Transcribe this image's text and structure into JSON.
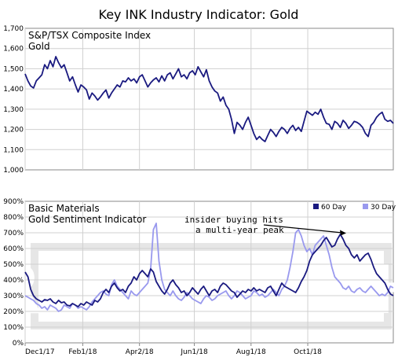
{
  "title": "Key INK Industry Indicator: Gold",
  "chart_data": [
    {
      "type": "line",
      "title": "S&P/TSX Composite Index",
      "subtitle": "Gold",
      "ylim": [
        1000,
        1700
      ],
      "yticks": [
        1000,
        1100,
        1200,
        1300,
        1400,
        1500,
        1600,
        1700
      ],
      "ytick_labels": [
        "1,000",
        "1,100",
        "1,200",
        "1,300",
        "1,400",
        "1,500",
        "1,600",
        "1,700"
      ],
      "grid": true,
      "series": [
        {
          "color": "#1a1a80",
          "x": [
            0,
            3,
            6,
            9,
            12,
            15,
            18,
            21,
            24,
            27,
            30,
            33,
            36,
            39,
            42,
            45,
            48,
            51,
            54,
            57,
            60,
            63,
            66,
            69,
            72,
            75,
            78,
            81,
            84,
            87,
            90,
            93,
            96,
            99,
            102,
            105,
            108,
            111,
            114,
            117,
            120,
            123,
            126,
            129,
            132,
            135,
            138,
            141,
            144,
            147,
            150,
            153,
            156,
            159,
            162,
            165,
            168,
            171,
            174,
            177,
            180,
            183,
            186,
            189,
            192,
            195,
            198,
            201,
            204,
            207,
            210,
            213,
            216,
            219,
            222,
            225,
            228,
            231,
            234,
            237,
            240,
            243,
            246,
            249,
            252,
            255,
            258,
            261,
            264,
            267,
            270,
            273,
            276,
            279,
            282,
            285,
            288,
            291,
            294,
            297,
            300,
            303,
            306,
            309,
            312,
            315,
            318,
            321,
            324,
            327,
            330,
            333,
            336,
            339,
            342,
            345,
            348,
            351,
            354,
            357,
            360,
            363,
            366,
            369,
            372,
            375,
            378,
            381,
            384,
            387,
            390,
            393,
            396
          ],
          "y": [
            1475,
            1440,
            1415,
            1405,
            1440,
            1455,
            1470,
            1520,
            1500,
            1540,
            1510,
            1560,
            1530,
            1505,
            1520,
            1480,
            1440,
            1460,
            1420,
            1385,
            1420,
            1410,
            1395,
            1350,
            1380,
            1365,
            1345,
            1360,
            1380,
            1395,
            1355,
            1380,
            1400,
            1420,
            1410,
            1440,
            1435,
            1455,
            1440,
            1450,
            1430,
            1460,
            1470,
            1440,
            1410,
            1430,
            1445,
            1455,
            1435,
            1465,
            1440,
            1470,
            1480,
            1450,
            1475,
            1500,
            1460,
            1470,
            1450,
            1480,
            1490,
            1470,
            1510,
            1485,
            1460,
            1495,
            1440,
            1410,
            1390,
            1380,
            1340,
            1360,
            1320,
            1300,
            1250,
            1180,
            1235,
            1220,
            1200,
            1235,
            1260,
            1220,
            1180,
            1150,
            1165,
            1150,
            1140,
            1170,
            1200,
            1185,
            1165,
            1190,
            1210,
            1200,
            1180,
            1205,
            1220,
            1195,
            1210,
            1190,
            1240,
            1290,
            1280,
            1270,
            1285,
            1275,
            1300,
            1260,
            1230,
            1225,
            1200,
            1240,
            1230,
            1210,
            1245,
            1230,
            1205,
            1220,
            1240,
            1235,
            1225,
            1210,
            1180,
            1165,
            1220,
            1235,
            1260,
            1275,
            1285,
            1250,
            1240,
            1245,
            1230
          ]
        }
      ]
    },
    {
      "type": "line",
      "title": "Basic Materials",
      "subtitle": "Gold Sentiment Indicator",
      "ylim": [
        0,
        900
      ],
      "yticks": [
        0,
        100,
        200,
        300,
        400,
        500,
        600,
        700,
        800,
        900
      ],
      "ytick_labels": [
        "0%",
        "100%",
        "200%",
        "300%",
        "400%",
        "500%",
        "600%",
        "700%",
        "800%",
        "900%"
      ],
      "grid": true,
      "legend_position": "top-right",
      "xticks": [
        0,
        62,
        123,
        182,
        243,
        304
      ],
      "xtick_labels": [
        "Dec1/17",
        "Feb1/18",
        "Apr2/18",
        "Jun1/18",
        "Aug1/18",
        "Oct1/18"
      ],
      "annotation": "insider buying hits\na multi-year peak",
      "series": [
        {
          "name": "60 Day",
          "color": "#1a1a80",
          "x": [
            0,
            3,
            6,
            9,
            12,
            15,
            18,
            21,
            24,
            27,
            30,
            33,
            36,
            39,
            42,
            45,
            48,
            51,
            54,
            57,
            60,
            63,
            66,
            69,
            72,
            75,
            78,
            81,
            84,
            87,
            90,
            93,
            96,
            99,
            102,
            105,
            108,
            111,
            114,
            117,
            120,
            123,
            126,
            129,
            132,
            135,
            138,
            141,
            144,
            147,
            150,
            153,
            156,
            159,
            162,
            165,
            168,
            171,
            174,
            177,
            180,
            183,
            186,
            189,
            192,
            195,
            198,
            201,
            204,
            207,
            210,
            213,
            216,
            219,
            222,
            225,
            228,
            231,
            234,
            237,
            240,
            243,
            246,
            249,
            252,
            255,
            258,
            261,
            264,
            267,
            270,
            273,
            276,
            279,
            282,
            285,
            288,
            291,
            294,
            297,
            300,
            303,
            306,
            309,
            312,
            315,
            318,
            321,
            324,
            327,
            330,
            333,
            336,
            339,
            342,
            345,
            348,
            351,
            354,
            357,
            360,
            363,
            366,
            369,
            372,
            375,
            378,
            381,
            384,
            387,
            390,
            393,
            396
          ],
          "y": [
            450,
            420,
            340,
            300,
            280,
            270,
            260,
            275,
            270,
            280,
            260,
            250,
            270,
            255,
            260,
            240,
            235,
            250,
            240,
            230,
            250,
            240,
            260,
            250,
            240,
            270,
            260,
            280,
            320,
            340,
            320,
            360,
            380,
            350,
            330,
            340,
            320,
            360,
            380,
            420,
            400,
            440,
            460,
            440,
            420,
            470,
            450,
            390,
            360,
            330,
            310,
            340,
            380,
            400,
            370,
            350,
            320,
            330,
            300,
            320,
            350,
            330,
            310,
            340,
            360,
            330,
            300,
            330,
            340,
            320,
            360,
            380,
            370,
            350,
            330,
            320,
            290,
            310,
            330,
            320,
            340,
            330,
            350,
            330,
            340,
            330,
            320,
            350,
            360,
            330,
            300,
            340,
            380,
            360,
            350,
            340,
            330,
            320,
            350,
            390,
            420,
            460,
            520,
            560,
            580,
            600,
            620,
            650,
            670,
            640,
            610,
            620,
            660,
            690,
            660,
            620,
            600,
            560,
            540,
            560,
            520,
            540,
            560,
            570,
            530,
            480,
            440,
            420,
            400,
            380,
            340,
            310,
            300
          ]
        },
        {
          "name": "30 Day",
          "color": "#9999ee",
          "x": [
            0,
            3,
            6,
            9,
            12,
            15,
            18,
            21,
            24,
            27,
            30,
            33,
            36,
            39,
            42,
            45,
            48,
            51,
            54,
            57,
            60,
            63,
            66,
            69,
            72,
            75,
            78,
            81,
            84,
            87,
            90,
            93,
            96,
            99,
            102,
            105,
            108,
            111,
            114,
            117,
            120,
            123,
            126,
            129,
            132,
            135,
            138,
            141,
            144,
            147,
            150,
            153,
            156,
            159,
            162,
            165,
            168,
            171,
            174,
            177,
            180,
            183,
            186,
            189,
            192,
            195,
            198,
            201,
            204,
            207,
            210,
            213,
            216,
            219,
            222,
            225,
            228,
            231,
            234,
            237,
            240,
            243,
            246,
            249,
            252,
            255,
            258,
            261,
            264,
            267,
            270,
            273,
            276,
            279,
            282,
            285,
            288,
            291,
            294,
            297,
            300,
            303,
            306,
            309,
            312,
            315,
            318,
            321,
            324,
            327,
            330,
            333,
            336,
            339,
            342,
            345,
            348,
            351,
            354,
            357,
            360,
            363,
            366,
            369,
            372,
            375,
            378,
            381,
            384,
            387,
            390,
            393,
            396
          ],
          "y": [
            300,
            290,
            280,
            270,
            250,
            240,
            220,
            230,
            210,
            240,
            230,
            220,
            200,
            210,
            240,
            230,
            220,
            250,
            240,
            220,
            230,
            220,
            210,
            230,
            260,
            280,
            300,
            320,
            330,
            310,
            300,
            370,
            400,
            360,
            340,
            320,
            300,
            280,
            330,
            310,
            300,
            320,
            340,
            360,
            380,
            470,
            720,
            760,
            520,
            400,
            340,
            320,
            300,
            330,
            300,
            280,
            270,
            290,
            320,
            300,
            280,
            270,
            260,
            250,
            280,
            300,
            290,
            270,
            280,
            300,
            310,
            320,
            330,
            300,
            280,
            300,
            330,
            320,
            300,
            280,
            290,
            300,
            330,
            320,
            300,
            310,
            290,
            300,
            320,
            340,
            320,
            300,
            340,
            360,
            400,
            480,
            580,
            700,
            720,
            680,
            620,
            580,
            600,
            560,
            620,
            640,
            660,
            680,
            620,
            560,
            480,
            420,
            400,
            380,
            350,
            340,
            360,
            330,
            320,
            340,
            350,
            330,
            320,
            340,
            360,
            340,
            320,
            300,
            310,
            300,
            320,
            360,
            350
          ]
        }
      ]
    }
  ]
}
